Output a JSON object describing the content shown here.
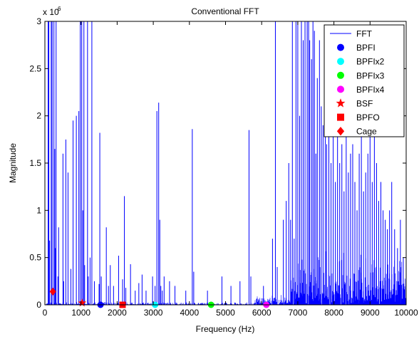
{
  "chart_data": {
    "type": "line",
    "title": "Conventional FFT",
    "xlabel": "Frequency (Hz)",
    "ylabel": "Magnitude",
    "xlim": [
      0,
      10000
    ],
    "ylim": [
      0,
      3000000
    ],
    "y_scale_label": "x 10",
    "y_scale_exponent": "6",
    "x_ticks": [
      0,
      1000,
      2000,
      3000,
      4000,
      5000,
      6000,
      7000,
      8000,
      9000,
      10000
    ],
    "x_tick_labels": [
      "0",
      "1000",
      "2000",
      "3000",
      "4000",
      "5000",
      "6000",
      "7000",
      "8000",
      "9000",
      "10000"
    ],
    "y_ticks": [
      0,
      500000,
      1000000,
      1500000,
      2000000,
      2500000,
      3000000
    ],
    "y_tick_labels": [
      "0",
      "0.5",
      "1",
      "1.5",
      "2",
      "2.5",
      "3"
    ],
    "grid": false,
    "legend_position": "top-right",
    "series": [
      {
        "name": "FFT",
        "color": "#0000ff",
        "marker": "line",
        "x": [
          90,
          110,
          130,
          175,
          200,
          250,
          275,
          290,
          310,
          360,
          380,
          500,
          520,
          580,
          640,
          720,
          780,
          870,
          940,
          980,
          1020,
          1050,
          1080,
          1100,
          1180,
          1200,
          1250,
          1300,
          1370,
          1500,
          1520,
          1560,
          1700,
          1760,
          1810,
          1900,
          2040,
          2150,
          2200,
          2240,
          2370,
          2500,
          2600,
          2690,
          2800,
          2980,
          3050,
          3100,
          3150,
          3180,
          3210,
          3250,
          3300,
          3450,
          3600,
          3900,
          4080,
          4120,
          4500,
          4900,
          5150,
          5400,
          5650,
          5700,
          6050,
          6300,
          6380,
          6430,
          6600,
          6680,
          6750,
          6800,
          6850,
          6900,
          6950,
          7000,
          7050,
          7100,
          7150,
          7200,
          7260,
          7300,
          7330,
          7380,
          7420,
          7460,
          7500,
          7540,
          7600,
          7650,
          7700,
          7760,
          7800,
          7860,
          7920,
          7980,
          8040,
          8100,
          8160,
          8220,
          8280,
          8340,
          8400,
          8460,
          8520,
          8580,
          8640,
          8700,
          8760,
          8820,
          8880,
          8940,
          9000,
          9060,
          9120,
          9180,
          9240,
          9300,
          9360,
          9420,
          9480,
          9540,
          9600,
          9680,
          9760,
          9840,
          9920
        ],
        "values": [
          3000000,
          3000000,
          680000,
          3000000,
          3000000,
          3000000,
          1650000,
          600000,
          3000000,
          300000,
          820000,
          1600000,
          250000,
          1750000,
          1400000,
          380000,
          1950000,
          2000000,
          2050000,
          3000000,
          3000000,
          1000000,
          3000000,
          420000,
          3000000,
          300000,
          500000,
          3000000,
          250000,
          220000,
          1820000,
          300000,
          820000,
          200000,
          420000,
          200000,
          520000,
          270000,
          1150000,
          180000,
          430000,
          150000,
          230000,
          320000,
          150000,
          300000,
          200000,
          2050000,
          2140000,
          900000,
          200000,
          150000,
          300000,
          250000,
          200000,
          150000,
          1860000,
          350000,
          150000,
          300000,
          200000,
          250000,
          1850000,
          300000,
          200000,
          700000,
          3000000,
          400000,
          900000,
          1100000,
          1500000,
          900000,
          3000000,
          700000,
          3000000,
          3000000,
          2000000,
          3000000,
          2800000,
          3000000,
          3000000,
          3000000,
          2800000,
          2600000,
          3000000,
          2900000,
          1600000,
          2400000,
          2800000,
          2100000,
          1900000,
          2700000,
          1700000,
          2200000,
          1500000,
          2000000,
          1300000,
          1800000,
          1500000,
          1700000,
          1200000,
          2500000,
          1400000,
          1600000,
          1700000,
          1300000,
          1000000,
          1600000,
          1900000,
          1200000,
          1400000,
          1600000,
          2200000,
          1300000,
          1900000,
          1500000,
          1100000,
          1300000,
          1000000,
          900000,
          800000,
          1000000,
          1300000,
          800000,
          600000,
          900000,
          500000
        ]
      },
      {
        "name": "BPFI",
        "color": "#0000ff",
        "marker": "circle",
        "x": [
          1540
        ],
        "values": [
          0
        ]
      },
      {
        "name": "BPFIx2",
        "color": "#00ffff",
        "marker": "circle",
        "x": [
          3050
        ],
        "values": [
          0
        ]
      },
      {
        "name": "BPFIx3",
        "color": "#00ff00",
        "marker": "circle",
        "x": [
          4600
        ],
        "values": [
          0
        ]
      },
      {
        "name": "BPFIx4",
        "color": "#ff00ff",
        "marker": "circle",
        "x": [
          6130
        ],
        "values": [
          0
        ]
      },
      {
        "name": "BSF",
        "color": "#ff0000",
        "marker": "star",
        "x": [
          1030
        ],
        "values": [
          20000
        ]
      },
      {
        "name": "BPFO",
        "color": "#ff0000",
        "marker": "square",
        "x": [
          2150
        ],
        "values": [
          0
        ]
      },
      {
        "name": "Cage",
        "color": "#ff0000",
        "marker": "diamond",
        "x": [
          220
        ],
        "values": [
          140000
        ]
      }
    ]
  }
}
